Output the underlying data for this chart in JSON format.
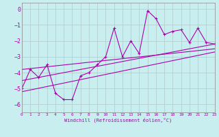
{
  "background_color": "#c8eef0",
  "grid_color": "#b0c8c8",
  "line_color": "#aa00aa",
  "xlabel": "Windchill (Refroidissement éolien,°C)",
  "xlim": [
    0,
    23
  ],
  "ylim": [
    -6.5,
    0.4
  ],
  "xticks": [
    0,
    1,
    2,
    3,
    4,
    5,
    6,
    7,
    8,
    9,
    10,
    11,
    12,
    13,
    14,
    15,
    16,
    17,
    18,
    19,
    20,
    21,
    22,
    23
  ],
  "yticks": [
    0,
    -1,
    -2,
    -3,
    -4,
    -5,
    -6
  ],
  "jagged_x": [
    0,
    1,
    2,
    3,
    4,
    5,
    6,
    7,
    8,
    9,
    10,
    11,
    12,
    13,
    14,
    15,
    16,
    17,
    18,
    19,
    20,
    21,
    22,
    23
  ],
  "jagged_y": [
    -5.0,
    -3.8,
    -4.3,
    -3.5,
    -5.3,
    -5.7,
    -5.7,
    -4.2,
    -4.0,
    -3.5,
    -3.0,
    -1.2,
    -3.0,
    -2.0,
    -2.8,
    -0.1,
    -0.6,
    -1.6,
    -1.4,
    -1.3,
    -2.1,
    -1.2,
    -2.1,
    -2.2
  ],
  "line1_x": [
    0,
    23
  ],
  "line1_y": [
    -4.5,
    -2.2
  ],
  "line2_x": [
    0,
    23
  ],
  "line2_y": [
    -3.8,
    -2.5
  ],
  "line3_x": [
    0,
    23
  ],
  "line3_y": [
    -5.2,
    -2.7
  ]
}
